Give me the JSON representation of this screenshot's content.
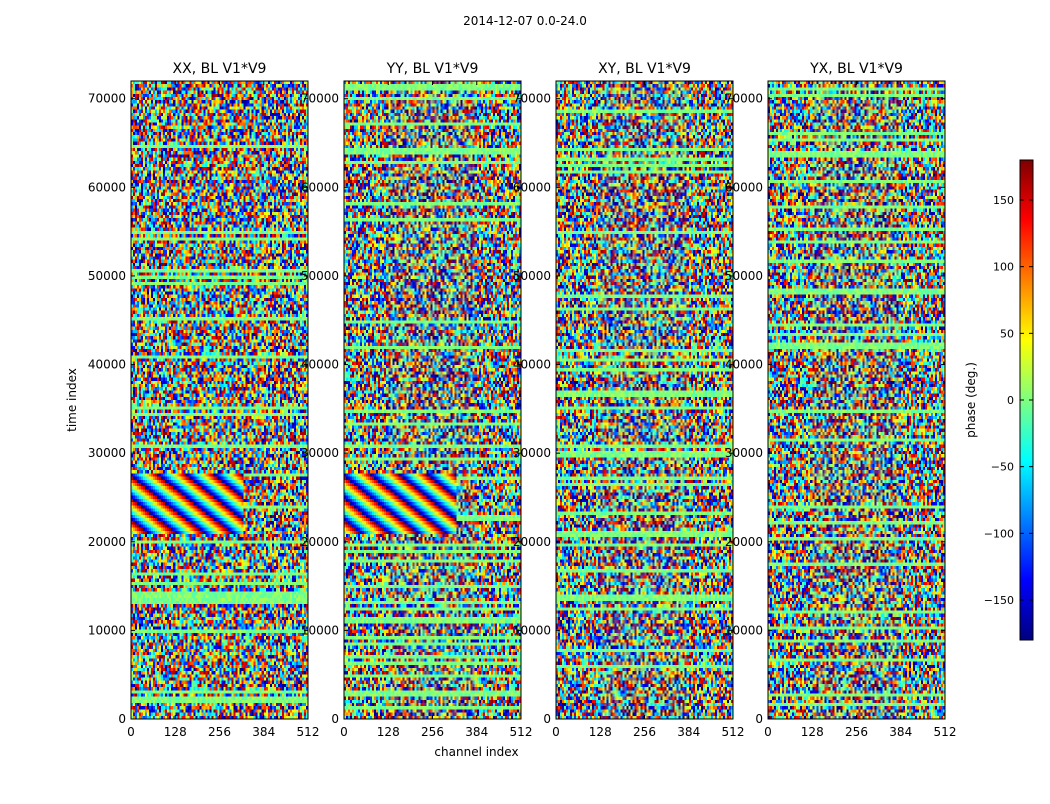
{
  "figure": {
    "suptitle": "2014-12-07 0.0-24.0",
    "colormap_stops": [
      "#00007f",
      "#0000ff",
      "#007fff",
      "#00ffff",
      "#7fff7f",
      "#ffff00",
      "#ff7f00",
      "#ff0000",
      "#7f0000"
    ]
  },
  "chart_data": [
    {
      "type": "heatmap",
      "title": "XX, BL V1*V9",
      "xlabel": "",
      "ylabel": "time index",
      "xlim": [
        0,
        512
      ],
      "ylim": [
        0,
        72000
      ],
      "x_ticks": [
        0,
        128,
        256,
        384,
        512
      ],
      "y_ticks": [
        0,
        10000,
        20000,
        30000,
        40000,
        50000,
        60000,
        70000
      ],
      "value_range": [
        -180,
        180
      ]
    },
    {
      "type": "heatmap",
      "title": "YY, BL V1*V9",
      "xlabel": "channel index",
      "ylabel": "",
      "xlim": [
        0,
        512
      ],
      "ylim": [
        0,
        72000
      ],
      "x_ticks": [
        0,
        128,
        256,
        384,
        512
      ],
      "y_ticks": [
        0,
        10000,
        20000,
        30000,
        40000,
        50000,
        60000,
        70000
      ],
      "value_range": [
        -180,
        180
      ]
    },
    {
      "type": "heatmap",
      "title": "XY, BL V1*V9",
      "xlabel": "",
      "ylabel": "",
      "xlim": [
        0,
        512
      ],
      "ylim": [
        0,
        72000
      ],
      "x_ticks": [
        0,
        128,
        256,
        384,
        512
      ],
      "y_ticks": [
        0,
        10000,
        20000,
        30000,
        40000,
        50000,
        60000,
        70000
      ],
      "value_range": [
        -180,
        180
      ]
    },
    {
      "type": "heatmap",
      "title": "YX, BL V1*V9",
      "xlabel": "",
      "ylabel": "",
      "xlim": [
        0,
        512
      ],
      "ylim": [
        0,
        72000
      ],
      "x_ticks": [
        0,
        128,
        256,
        384,
        512
      ],
      "y_ticks": [
        0,
        10000,
        20000,
        30000,
        40000,
        50000,
        60000,
        70000
      ],
      "value_range": [
        -180,
        180
      ]
    }
  ],
  "colorbar": {
    "label": "phase (deg.)",
    "range": [
      -180,
      180
    ],
    "ticks": [
      150,
      100,
      50,
      0,
      -50,
      -100,
      -150
    ],
    "tick_labels": [
      "150",
      "100",
      "50",
      "0",
      "−50",
      "−100",
      "−150"
    ]
  }
}
